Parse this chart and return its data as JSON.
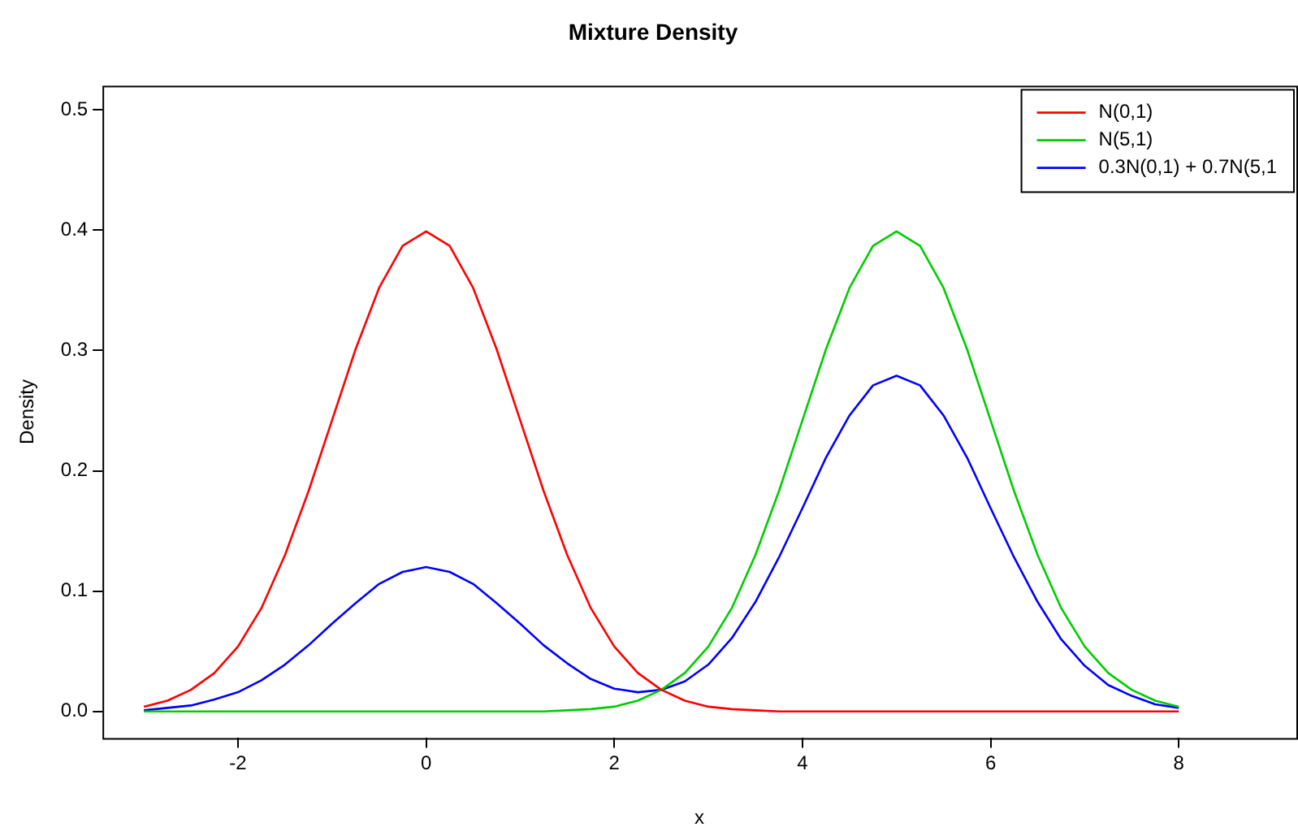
{
  "chart_data": {
    "type": "line",
    "title": "Mixture Density",
    "xlabel": "x",
    "ylabel": "Density",
    "x": [
      -3,
      -2.75,
      -2.5,
      -2.25,
      -2,
      -1.75,
      -1.5,
      -1.25,
      -1,
      -0.75,
      -0.5,
      -0.25,
      0,
      0.25,
      0.5,
      0.75,
      1,
      1.25,
      1.5,
      1.75,
      2,
      2.25,
      2.5,
      2.75,
      3,
      3.25,
      3.5,
      3.75,
      4,
      4.25,
      4.5,
      4.75,
      5,
      5.25,
      5.5,
      5.75,
      6,
      6.25,
      6.5,
      6.75,
      7,
      7.25,
      7.5,
      7.75,
      8
    ],
    "series": [
      {
        "name": "N(0,1)",
        "color": "#ff0000",
        "values": [
          0.004,
          0.009,
          0.018,
          0.032,
          0.054,
          0.086,
          0.13,
          0.183,
          0.242,
          0.301,
          0.352,
          0.387,
          0.399,
          0.387,
          0.352,
          0.301,
          0.242,
          0.183,
          0.13,
          0.086,
          0.054,
          0.032,
          0.018,
          0.009,
          0.004,
          0.002,
          0.001,
          0,
          0,
          0,
          0,
          0,
          0,
          0,
          0,
          0,
          0,
          0,
          0,
          0,
          0,
          0,
          0,
          0,
          0
        ]
      },
      {
        "name": "N(5,1)",
        "color": "#00cd00",
        "values": [
          0,
          0,
          0,
          0,
          0,
          0,
          0,
          0,
          0,
          0,
          0,
          0,
          0,
          0,
          0,
          0,
          0,
          0,
          0.001,
          0.002,
          0.004,
          0.009,
          0.018,
          0.032,
          0.054,
          0.086,
          0.13,
          0.183,
          0.242,
          0.301,
          0.352,
          0.387,
          0.399,
          0.387,
          0.352,
          0.301,
          0.242,
          0.183,
          0.13,
          0.086,
          0.054,
          0.032,
          0.018,
          0.009,
          0.004
        ]
      },
      {
        "name": "0.3N(0,1) + 0.7N(5,1",
        "color": "#0000ff",
        "values": [
          0.001,
          0.003,
          0.005,
          0.01,
          0.016,
          0.026,
          0.039,
          0.055,
          0.073,
          0.09,
          0.106,
          0.116,
          0.12,
          0.116,
          0.106,
          0.09,
          0.073,
          0.055,
          0.04,
          0.027,
          0.019,
          0.016,
          0.018,
          0.025,
          0.039,
          0.061,
          0.091,
          0.128,
          0.169,
          0.211,
          0.246,
          0.271,
          0.279,
          0.271,
          0.246,
          0.211,
          0.169,
          0.128,
          0.091,
          0.06,
          0.038,
          0.022,
          0.013,
          0.006,
          0.003
        ]
      }
    ],
    "xlim": [
      -3.44,
      9.25
    ],
    "ylim": [
      -0.022,
      0.52
    ],
    "xticks": [
      -2,
      0,
      2,
      4,
      6,
      8
    ],
    "yticks": [
      {
        "value": 0,
        "label": "0.0"
      },
      0.1,
      0.2,
      0.3,
      0.4,
      0.5
    ],
    "grid": false,
    "legend": "top right",
    "marker": "none",
    "line_style": "solid"
  }
}
